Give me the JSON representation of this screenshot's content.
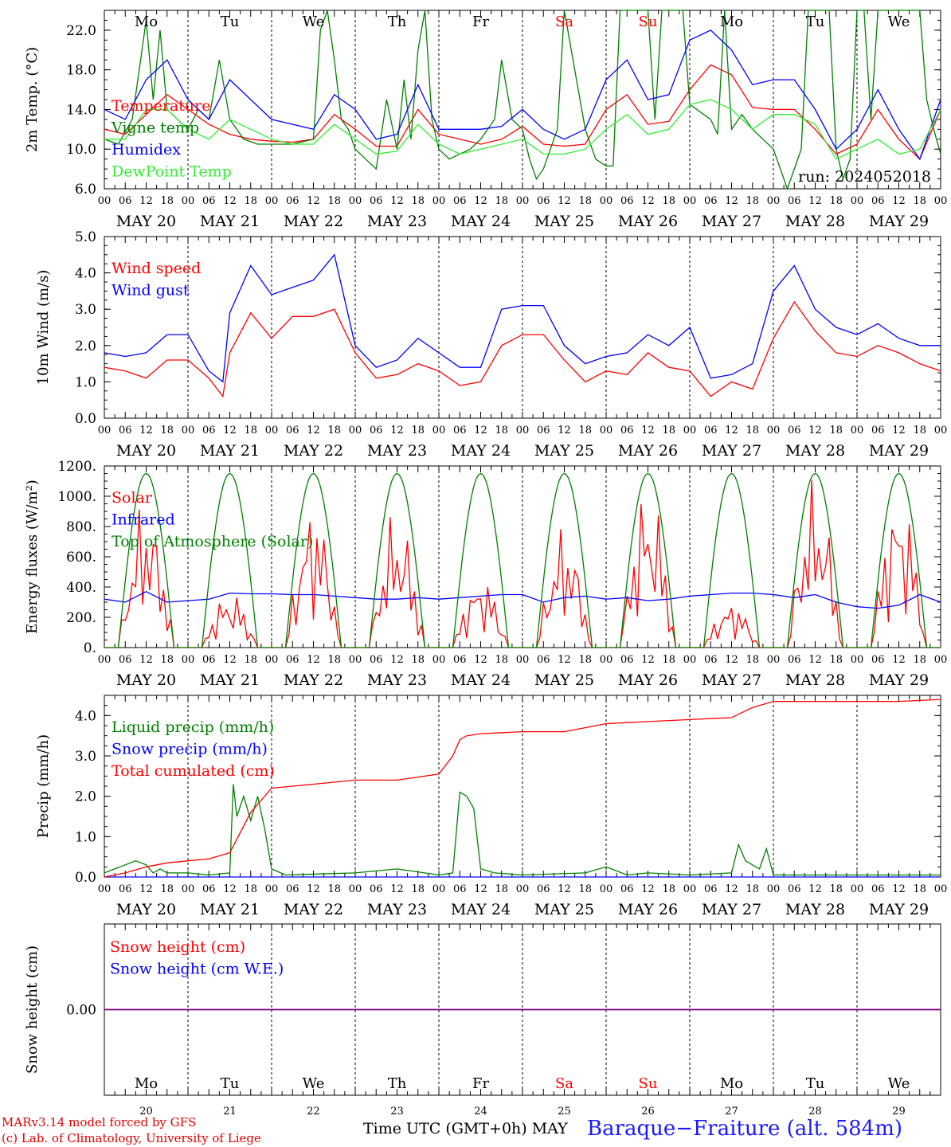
{
  "chart_data": [
    {
      "type": "line",
      "ylabel": "2m Temp. (°C)",
      "ylim": [
        6,
        24
      ],
      "ticks": [
        6,
        10,
        14,
        18,
        22
      ],
      "tick_decimals": 1,
      "annotation": "run: 2024052018",
      "series": [
        {
          "name": "Temperature",
          "color": "#ff0000",
          "hours": [
            0,
            6,
            12,
            18,
            24,
            30,
            36,
            42,
            48,
            54,
            60,
            66,
            72,
            78,
            84,
            90,
            96,
            102,
            108,
            114,
            120,
            126,
            132,
            138,
            144,
            150,
            156,
            162,
            168,
            174,
            180,
            186,
            192,
            198,
            204,
            210,
            216,
            222,
            228,
            234,
            240
          ],
          "values": [
            12,
            11.5,
            13.5,
            15.5,
            14,
            12.5,
            11.5,
            11,
            10.8,
            10.7,
            11,
            13.5,
            12,
            10.3,
            10.3,
            14,
            11.5,
            11,
            10.5,
            11,
            12.3,
            10.5,
            10.3,
            10.5,
            14,
            15.5,
            12.5,
            12.8,
            16,
            18.5,
            17.5,
            14.2,
            14,
            14,
            12,
            9.5,
            10.5,
            14,
            11,
            9,
            14
          ]
        },
        {
          "name": "Vigne temp",
          "color": "#008000",
          "hours": [
            0,
            4,
            8,
            10,
            12,
            14,
            16,
            18,
            21,
            24,
            27,
            30,
            33,
            36,
            40,
            44,
            48,
            54,
            60,
            62,
            64,
            66,
            68,
            70,
            72,
            75,
            78,
            81,
            84,
            86,
            88,
            90,
            92,
            94,
            96,
            99,
            102,
            105,
            108,
            112,
            114,
            117,
            120,
            122,
            124,
            126,
            130,
            132,
            135,
            138,
            141,
            144,
            146,
            148,
            150,
            152,
            154,
            156,
            158,
            160,
            162,
            164,
            166,
            168,
            170,
            172,
            174,
            176,
            178,
            180,
            183,
            186,
            189,
            192,
            196,
            198,
            200,
            202,
            204,
            206,
            208,
            210,
            212,
            214,
            216,
            218,
            220,
            222,
            224,
            226,
            228,
            230,
            232,
            234,
            236,
            238,
            240
          ],
          "values": [
            11,
            10.5,
            13,
            18,
            23,
            15,
            22,
            14,
            13,
            12,
            14,
            13,
            19,
            13,
            11,
            10.5,
            10.5,
            10.5,
            11,
            22,
            24,
            19,
            13,
            12,
            10,
            9,
            8,
            15,
            10,
            17,
            11,
            20,
            24,
            13,
            10,
            9,
            9.5,
            10,
            11,
            13,
            19,
            13,
            12,
            9,
            7,
            8,
            12,
            24,
            18,
            12,
            9,
            8.3,
            8.3,
            24,
            24,
            24,
            24,
            24,
            13,
            24,
            24,
            24,
            24,
            14.5,
            14,
            13.5,
            13,
            11.5,
            24,
            12,
            13.5,
            12,
            11,
            10,
            6,
            8,
            10,
            24,
            24,
            24,
            24,
            10,
            7,
            9,
            24,
            24,
            13,
            24,
            24,
            24,
            24,
            24,
            24,
            24,
            15,
            12,
            9.5
          ]
        },
        {
          "name": "Humidex",
          "color": "#0000ff",
          "hours": [
            0,
            6,
            12,
            18,
            24,
            30,
            36,
            42,
            48,
            54,
            60,
            66,
            72,
            78,
            84,
            90,
            96,
            102,
            108,
            114,
            120,
            126,
            132,
            138,
            144,
            150,
            156,
            162,
            168,
            174,
            180,
            186,
            192,
            198,
            204,
            210,
            216,
            222,
            228,
            234,
            240
          ],
          "values": [
            14,
            13,
            17,
            19,
            15,
            13,
            17,
            15,
            13,
            12.5,
            12,
            15.5,
            14,
            11,
            11.5,
            16.5,
            12,
            12,
            12,
            12.3,
            14,
            12,
            11,
            12,
            17,
            19,
            15,
            15.5,
            21,
            22,
            20,
            16.5,
            17,
            17,
            14,
            10,
            12,
            16,
            12,
            9,
            15
          ]
        },
        {
          "name": "DewPoint Temp",
          "color": "#33ee33",
          "hours": [
            0,
            6,
            12,
            18,
            24,
            30,
            36,
            42,
            48,
            54,
            60,
            66,
            72,
            78,
            84,
            90,
            96,
            102,
            108,
            114,
            120,
            126,
            132,
            138,
            144,
            150,
            156,
            162,
            168,
            174,
            180,
            186,
            192,
            198,
            204,
            210,
            216,
            222,
            228,
            234,
            240
          ],
          "values": [
            11,
            11,
            14,
            14,
            12,
            11,
            13,
            12,
            11,
            10.5,
            10.5,
            12.5,
            11,
            9.5,
            9.8,
            12.5,
            10.5,
            9.5,
            10,
            10.5,
            11,
            9.5,
            9.5,
            10,
            12,
            13.5,
            11.5,
            12,
            14.5,
            15,
            14,
            12,
            13.5,
            13.5,
            12.5,
            9,
            10,
            11,
            9.5,
            10,
            14
          ]
        }
      ]
    },
    {
      "type": "line",
      "ylabel": "10m Wind (m/s)",
      "ylim": [
        0,
        5
      ],
      "ticks": [
        0,
        1,
        2,
        3,
        4,
        5
      ],
      "tick_decimals": 1,
      "series": [
        {
          "name": "Wind speed",
          "color": "#ff0000",
          "hours": [
            0,
            6,
            12,
            18,
            24,
            30,
            34,
            36,
            42,
            48,
            54,
            60,
            66,
            72,
            78,
            84,
            90,
            96,
            102,
            108,
            114,
            120,
            126,
            132,
            138,
            144,
            150,
            156,
            162,
            168,
            174,
            180,
            186,
            192,
            198,
            204,
            210,
            216,
            222,
            228,
            234,
            240
          ],
          "values": [
            1.4,
            1.3,
            1.1,
            1.6,
            1.6,
            1.1,
            0.6,
            1.8,
            2.9,
            2.2,
            2.8,
            2.8,
            3,
            1.8,
            1.1,
            1.2,
            1.5,
            1.3,
            0.9,
            1,
            2,
            2.3,
            2.3,
            1.6,
            1,
            1.3,
            1.2,
            1.8,
            1.4,
            1.3,
            0.6,
            1,
            0.8,
            2.2,
            3.2,
            2.4,
            1.8,
            1.7,
            2,
            1.8,
            1.5,
            1.3
          ]
        },
        {
          "name": "Wind gust",
          "color": "#0000ff",
          "hours": [
            0,
            6,
            12,
            18,
            24,
            30,
            34,
            36,
            42,
            48,
            54,
            60,
            66,
            72,
            78,
            84,
            90,
            96,
            102,
            108,
            114,
            120,
            126,
            132,
            138,
            144,
            150,
            156,
            162,
            168,
            174,
            180,
            186,
            192,
            198,
            204,
            210,
            216,
            222,
            228,
            234,
            240
          ],
          "values": [
            1.8,
            1.7,
            1.8,
            2.3,
            2.3,
            1.3,
            1,
            2.9,
            4.2,
            3.4,
            3.6,
            3.8,
            4.5,
            2,
            1.4,
            1.6,
            2.2,
            1.8,
            1.4,
            1.4,
            3,
            3.1,
            3.1,
            2,
            1.5,
            1.7,
            1.8,
            2.3,
            2,
            2.5,
            1.1,
            1.2,
            1.5,
            3.5,
            4.2,
            3,
            2.5,
            2.3,
            2.6,
            2.2,
            2,
            2
          ]
        }
      ]
    },
    {
      "type": "line",
      "ylabel": "Energy fluxes (W/m²)",
      "ylim": [
        0,
        1200
      ],
      "ticks": [
        0,
        200,
        400,
        600,
        800,
        1000,
        1200
      ],
      "tick_decimals": 0,
      "tick_suffix": ".",
      "series": [
        {
          "name": "Solar",
          "color": "#ff0000",
          "peaks": [
            780,
            300,
            780,
            720,
            390,
            640,
            860,
            250,
            870,
            850
          ],
          "peak_hours": [
            12,
            34,
            60,
            84,
            108,
            132,
            156,
            180,
            204,
            228
          ]
        },
        {
          "name": "Infrared",
          "color": "#0000ff",
          "hours": [
            0,
            6,
            12,
            18,
            24,
            30,
            36,
            42,
            48,
            54,
            60,
            66,
            72,
            78,
            84,
            90,
            96,
            102,
            108,
            114,
            120,
            126,
            132,
            138,
            144,
            150,
            156,
            162,
            168,
            174,
            180,
            186,
            192,
            198,
            204,
            210,
            216,
            222,
            228,
            234,
            240
          ],
          "values": [
            320,
            300,
            370,
            300,
            310,
            320,
            360,
            355,
            355,
            350,
            350,
            340,
            330,
            320,
            320,
            330,
            320,
            330,
            340,
            350,
            350,
            300,
            330,
            340,
            320,
            330,
            310,
            320,
            340,
            350,
            360,
            360,
            350,
            330,
            350,
            300,
            270,
            260,
            280,
            350,
            300
          ]
        },
        {
          "name": "Top of Atmosphere (Solar)",
          "color": "#008000",
          "peak": 1150
        }
      ]
    },
    {
      "type": "line",
      "ylabel": "Precip (mm/h)",
      "ylim": [
        0,
        4.5
      ],
      "ticks": [
        0,
        1,
        2,
        3,
        4
      ],
      "tick_decimals": 1,
      "series": [
        {
          "name": "Liquid precip (mm/h)",
          "color": "#008000",
          "hours": [
            0,
            3,
            6,
            9,
            12,
            14,
            16,
            18,
            24,
            30,
            36,
            37,
            38,
            40,
            42,
            44,
            46,
            48,
            52,
            72,
            84,
            96,
            100,
            102,
            104,
            106,
            108,
            112,
            120,
            138,
            144,
            150,
            156,
            168,
            180,
            182,
            184,
            186,
            188,
            190,
            192,
            240
          ],
          "values": [
            0.1,
            0.2,
            0.3,
            0.4,
            0.3,
            0.1,
            0.2,
            0.1,
            0.1,
            0.05,
            0.1,
            2.3,
            1.5,
            2,
            1.4,
            2,
            1.2,
            0.2,
            0.05,
            0.1,
            0.2,
            0.05,
            0.1,
            2.1,
            2,
            1.7,
            0.2,
            0.1,
            0.05,
            0.1,
            0.25,
            0.05,
            0.1,
            0.05,
            0.1,
            0.8,
            0.4,
            0.3,
            0.2,
            0.7,
            0.05,
            0.05
          ]
        },
        {
          "name": "Snow precip (mm/h)",
          "color": "#0000ff",
          "hours": [
            0,
            240
          ],
          "values": [
            0,
            0
          ]
        },
        {
          "name": "Total cumulated (cm)",
          "color": "#ff0000",
          "hours": [
            0,
            6,
            12,
            18,
            24,
            30,
            36,
            42,
            48,
            60,
            72,
            84,
            96,
            100,
            102,
            104,
            108,
            120,
            132,
            144,
            156,
            168,
            180,
            186,
            192,
            204,
            216,
            228,
            240
          ],
          "values": [
            0,
            0.1,
            0.25,
            0.35,
            0.4,
            0.45,
            0.6,
            1.6,
            2.2,
            2.3,
            2.4,
            2.4,
            2.55,
            3,
            3.4,
            3.5,
            3.55,
            3.6,
            3.6,
            3.8,
            3.85,
            3.9,
            3.95,
            4.2,
            4.35,
            4.35,
            4.35,
            4.35,
            4.4
          ]
        }
      ]
    },
    {
      "type": "line",
      "ylabel": "Snow height (cm)",
      "ylim": [
        -1,
        1
      ],
      "ticks": [
        0
      ],
      "tick_decimals": 2,
      "series": [
        {
          "name": "Snow height (cm)",
          "color": "#ff0000",
          "hours": [
            0,
            240
          ],
          "values": [
            0,
            0
          ]
        },
        {
          "name": "Snow height (cm W.E.)",
          "color": "#0000ff",
          "hours": [
            0,
            240
          ],
          "values": [
            0,
            0
          ]
        }
      ]
    }
  ],
  "days": [
    {
      "date": "MAY 20",
      "weekday": "Mo",
      "num": "20",
      "weekend": false
    },
    {
      "date": "MAY 21",
      "weekday": "Tu",
      "num": "21",
      "weekend": false
    },
    {
      "date": "MAY 22",
      "weekday": "We",
      "num": "22",
      "weekend": false
    },
    {
      "date": "MAY 23",
      "weekday": "Th",
      "num": "23",
      "weekend": false
    },
    {
      "date": "MAY 24",
      "weekday": "Fr",
      "num": "24",
      "weekend": false
    },
    {
      "date": "MAY 25",
      "weekday": "Sa",
      "num": "25",
      "weekend": true
    },
    {
      "date": "MAY 26",
      "weekday": "Su",
      "num": "26",
      "weekend": true
    },
    {
      "date": "MAY 27",
      "weekday": "Mo",
      "num": "27",
      "weekend": false
    },
    {
      "date": "MAY 28",
      "weekday": "Tu",
      "num": "28",
      "weekend": false
    },
    {
      "date": "MAY 29",
      "weekday": "We",
      "num": "29",
      "weekend": false
    }
  ],
  "hour_ticks": [
    "00",
    "06",
    "12",
    "18"
  ],
  "hour_end_tick": "00",
  "colors": {
    "weekend": "#ff0000",
    "weekday": "#000000"
  },
  "footer": {
    "model": "MARv3.14 model forced by GFS",
    "lab": "(c) Lab. of Climatology, University of Liege",
    "time_axis": "Time UTC (GMT+0h) MAY",
    "station": "Baraque−Fraiture (alt. 584m)"
  }
}
